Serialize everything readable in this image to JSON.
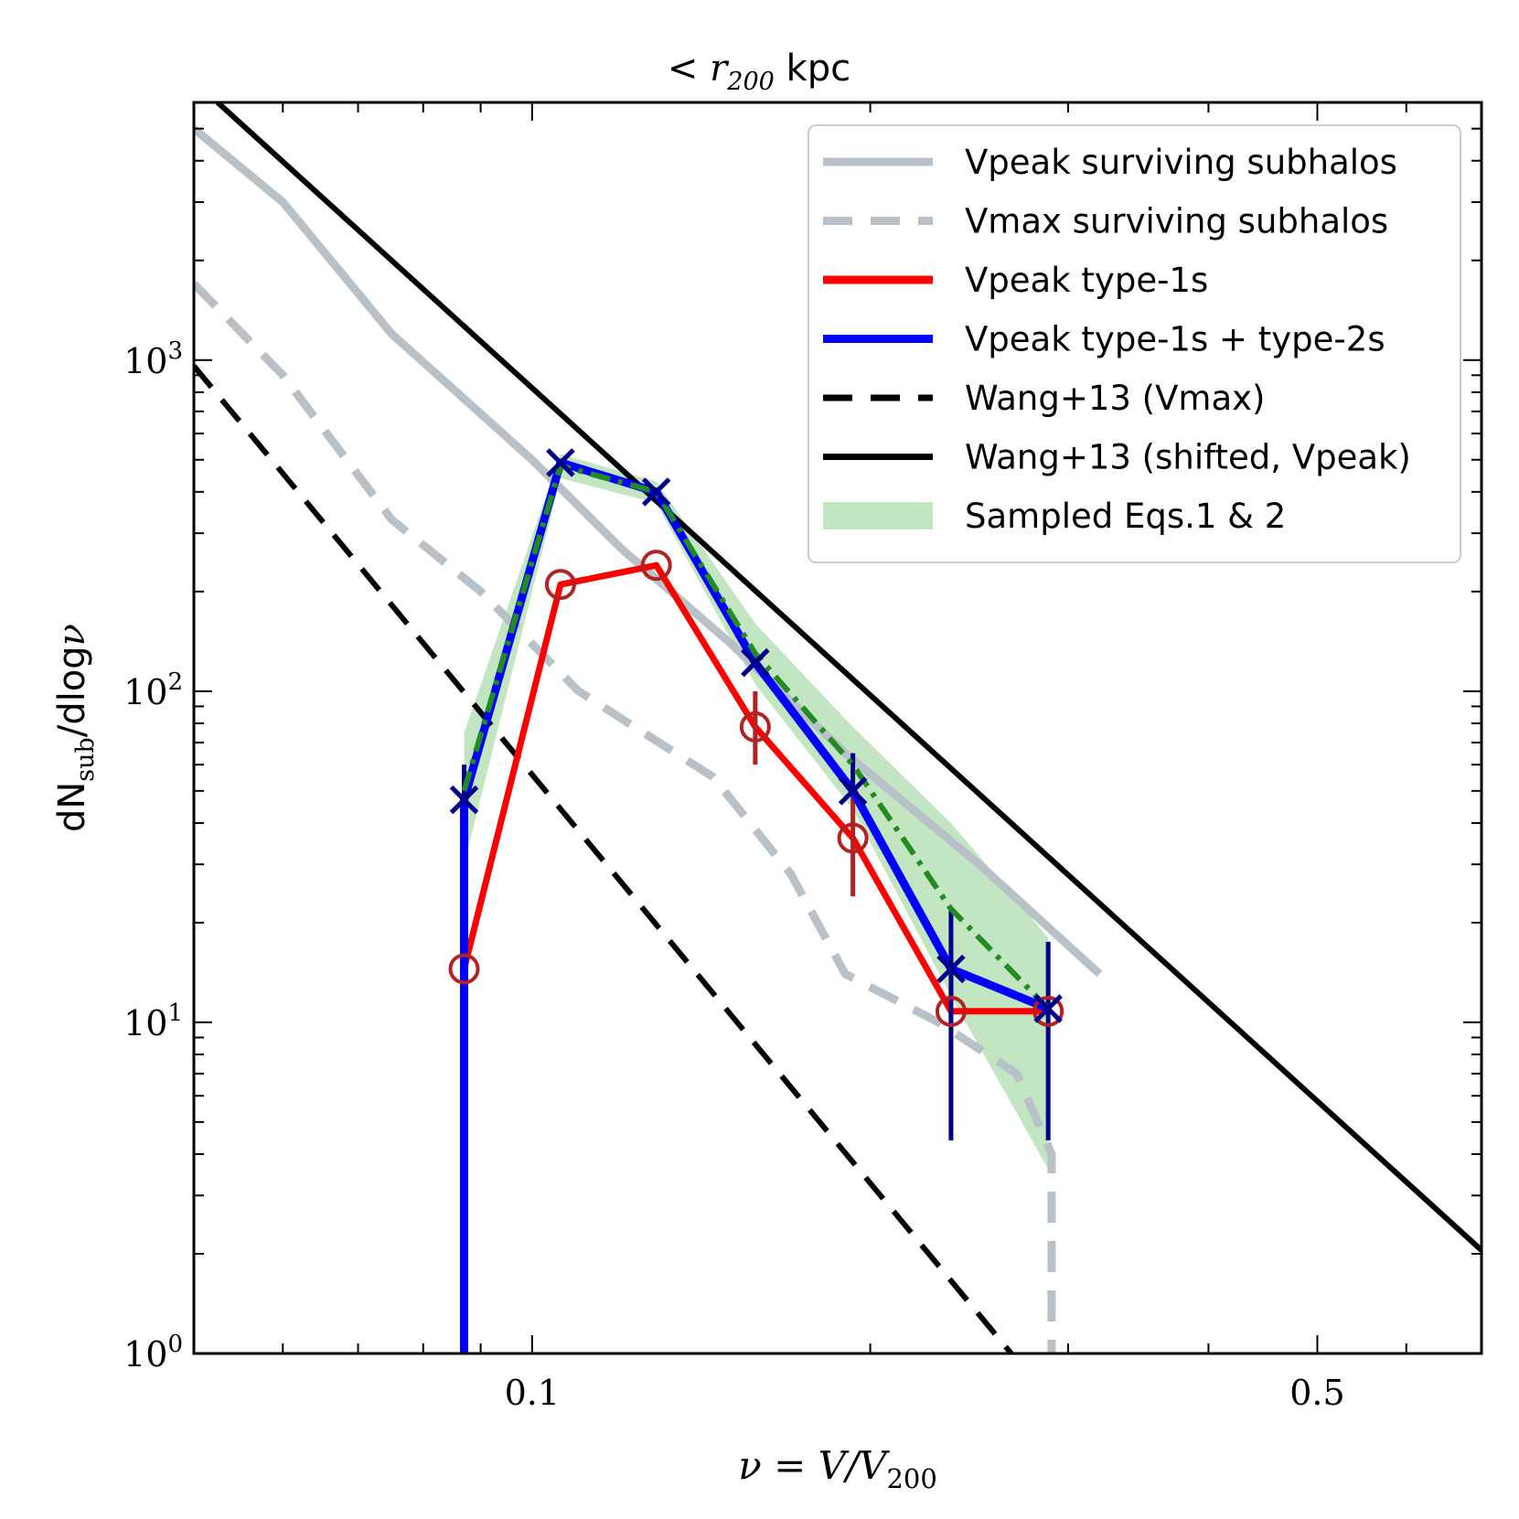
{
  "chart_data": {
    "type": "line",
    "title": {
      "prefix": "< ",
      "symbol": "r",
      "sub": "200",
      "suffix": " kpc"
    },
    "xlabel": {
      "lhs": "ν = V/V",
      "sub": "200"
    },
    "ylabel": {
      "pre": "dN",
      "sub": "sub",
      "post": "/dlog",
      "nu": "ν"
    },
    "xscale": "log",
    "yscale": "log",
    "xlim": [
      0.05,
      0.7
    ],
    "ylim": [
      1,
      6000
    ],
    "xticks": [
      {
        "value": 0.1,
        "label": "0.1"
      },
      {
        "value": 0.5,
        "label": "0.5"
      }
    ],
    "yticks": [
      {
        "value": 1,
        "base": "10",
        "exp": "0"
      },
      {
        "value": 10,
        "base": "10",
        "exp": "1"
      },
      {
        "value": 100,
        "base": "10",
        "exp": "2"
      },
      {
        "value": 1000,
        "base": "10",
        "exp": "3"
      }
    ],
    "legend_position": "top-right",
    "series": [
      {
        "name": "Vpeak surviving subhalos",
        "color": "#b8c0c8",
        "style": "solid",
        "x": [
          0.05,
          0.06,
          0.075,
          0.1,
          0.12,
          0.15,
          0.19,
          0.25,
          0.32
        ],
        "y": [
          5000,
          3000,
          1200,
          500,
          270,
          140,
          65,
          30,
          14
        ]
      },
      {
        "name": "Vmax surviving subhalos",
        "color": "#b8c0c8",
        "style": "dashed",
        "x": [
          0.05,
          0.06,
          0.075,
          0.09,
          0.11,
          0.145,
          0.17,
          0.19,
          0.23,
          0.27,
          0.29,
          0.29
        ],
        "y": [
          1700,
          900,
          330,
          200,
          100,
          55,
          28,
          14,
          10,
          7,
          4,
          1
        ]
      },
      {
        "name": "Vpeak type-1s",
        "color": "#ff0000",
        "style": "solid",
        "marker": "circle",
        "marker_color": "#b22222",
        "x": [
          0.087,
          0.106,
          0.129,
          0.158,
          0.193,
          0.236,
          0.288
        ],
        "y": [
          14.5,
          210,
          240,
          78,
          36,
          10.8,
          10.8
        ],
        "err_low": [
          0,
          0,
          0,
          60,
          24,
          4.7,
          0
        ],
        "err_high": [
          0,
          0,
          0,
          100,
          49,
          16.5,
          0
        ]
      },
      {
        "name": "Vpeak type-1s + type-2s",
        "color": "#0000ff",
        "style": "solid",
        "marker": "x",
        "marker_color": "#00008b",
        "x": [
          0.087,
          0.087,
          0.106,
          0.129,
          0.158,
          0.193,
          0.236,
          0.288
        ],
        "y": [
          1,
          47,
          490,
          400,
          122,
          50,
          14.5,
          11
        ],
        "err_low": [
          0,
          0,
          0,
          0,
          0,
          0,
          4.4,
          4.4
        ],
        "err_high": [
          0,
          60,
          0,
          0,
          0,
          65,
          22,
          17.5
        ]
      },
      {
        "name": "Wang+13 (Vmax)",
        "color": "#000000",
        "style": "dashed",
        "x": [
          0.05,
          0.267
        ],
        "y": [
          960,
          1
        ]
      },
      {
        "name": "Wang+13 (shifted, Vpeak)",
        "color": "#000000",
        "style": "solid",
        "x": [
          0.0525,
          0.7
        ],
        "y": [
          6000,
          2.05
        ]
      },
      {
        "name": "Sampled Eqs.1 & 2",
        "color": "#90d090",
        "style": "band",
        "band_line_color": "#228b22",
        "x": [
          0.087,
          0.106,
          0.129,
          0.158,
          0.193,
          0.236,
          0.288
        ],
        "lower": [
          30,
          440,
          370,
          105,
          44,
          12,
          3.6
        ],
        "mid": [
          50,
          480,
          400,
          130,
          60,
          22,
          11
        ],
        "upper": [
          75,
          520,
          430,
          160,
          78,
          40,
          18
        ]
      }
    ]
  }
}
